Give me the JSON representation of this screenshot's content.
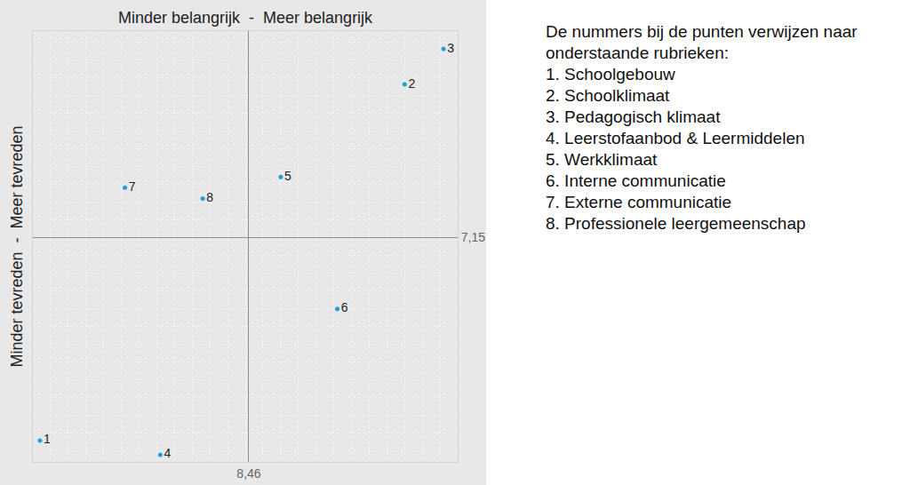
{
  "chart_data": {
    "type": "scatter",
    "x_label": "Minder belangrijk  -  Meer belangrijk",
    "y_label": "Minder tevreden  -  Meer tevreden",
    "point_labels": [
      "1",
      "2",
      "3",
      "4",
      "5",
      "6",
      "7",
      "8"
    ],
    "x": [
      7.87,
      8.9,
      9.01,
      8.21,
      8.55,
      8.71,
      8.11,
      8.33
    ],
    "y": [
      6.58,
      7.58,
      7.68,
      6.54,
      7.32,
      6.95,
      7.29,
      7.26
    ],
    "color": "#1e9fdc",
    "marker": "circle",
    "xlim": [
      7.85,
      9.05
    ],
    "ylim": [
      6.52,
      7.73
    ],
    "xticks": [
      {
        "value": 8.46,
        "label": "8,46"
      }
    ],
    "yticks": [
      {
        "value": 7.15,
        "label": "7,15"
      }
    ],
    "grid": true,
    "legend_title": "De nummers bij de punten verwijzen naar onderstaande rubrieken:",
    "legend_items": [
      "1. Schoolgebouw",
      "2. Schoolklimaat",
      "3. Pedagogisch klimaat",
      "4. Leerstofaanbod & Leermiddelen",
      "5. Werkklimaat",
      "6. Interne communicatie",
      "7. Externe communicatie",
      "8. Professionele leergemeenschap"
    ]
  }
}
